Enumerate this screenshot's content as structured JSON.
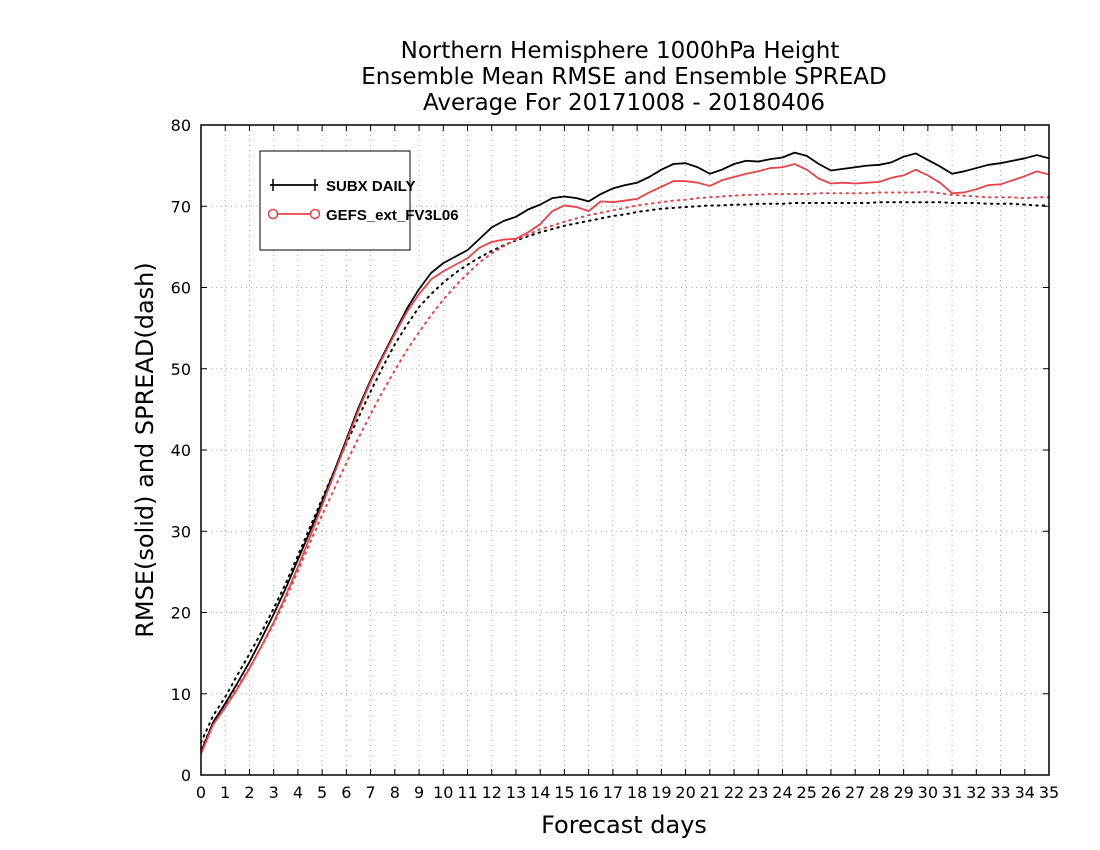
{
  "chart_data": {
    "type": "line",
    "title_lines": [
      "Northern Hemisphere 1000hPa Height",
      "Ensemble Mean RMSE and Ensemble SPREAD",
      "Average For 20171008 - 20180406"
    ],
    "xlabel": "Forecast days",
    "ylabel": "RMSE(solid) and SPREAD(dash)",
    "xlim": [
      0,
      35
    ],
    "ylim": [
      0,
      80
    ],
    "x_ticks": [
      0,
      1,
      2,
      3,
      4,
      5,
      6,
      7,
      8,
      9,
      10,
      11,
      12,
      13,
      14,
      15,
      16,
      17,
      18,
      19,
      20,
      21,
      22,
      23,
      24,
      25,
      26,
      27,
      28,
      29,
      30,
      31,
      32,
      33,
      34,
      35
    ],
    "y_ticks": [
      0,
      10,
      20,
      30,
      40,
      50,
      60,
      70,
      80
    ],
    "x_tick_labels": [
      "0",
      "1",
      "2",
      "3",
      "4",
      "5",
      "6",
      "7",
      "8",
      "9",
      "10",
      "11",
      "12",
      "13",
      "14",
      "15",
      "16",
      "17",
      "18",
      "19",
      "20",
      "21",
      "22",
      "23",
      "24",
      "25",
      "26",
      "27",
      "28",
      "29",
      "30",
      "31",
      "32",
      "33",
      "34",
      "35"
    ],
    "y_tick_labels": [
      "0",
      "10",
      "20",
      "30",
      "40",
      "50",
      "60",
      "70",
      "80"
    ],
    "grid": true,
    "legend_position": "top-left",
    "series": [
      {
        "name": "SUBX DAILY",
        "metric": "RMSE",
        "style": "solid",
        "color": "#000000",
        "marker": "plus",
        "x": [
          0,
          0.5,
          1,
          1.5,
          2,
          2.5,
          3,
          3.5,
          4,
          4.5,
          5,
          5.5,
          6,
          6.5,
          7,
          7.5,
          8,
          8.5,
          9,
          9.5,
          10,
          10.5,
          11,
          11.5,
          12,
          12.5,
          13,
          13.5,
          14,
          14.5,
          15,
          15.5,
          16,
          16.5,
          17,
          17.5,
          18,
          18.5,
          19,
          19.5,
          20,
          20.5,
          21,
          21.5,
          22,
          22.5,
          23,
          23.5,
          24,
          24.5,
          25,
          25.5,
          26,
          26.5,
          27,
          27.5,
          28,
          28.5,
          29,
          29.5,
          30,
          30.5,
          31,
          31.5,
          32,
          32.5,
          33,
          33.5,
          34,
          34.5,
          35
        ],
        "y": [
          2.8,
          6.5,
          8.8,
          11.3,
          13.9,
          16.8,
          19.8,
          23.0,
          26.5,
          30.0,
          33.7,
          37.4,
          41.3,
          45.2,
          48.6,
          51.6,
          54.5,
          57.4,
          59.8,
          61.8,
          63.0,
          63.8,
          64.6,
          66.0,
          67.4,
          68.2,
          68.7,
          69.6,
          70.2,
          71.0,
          71.2,
          71.0,
          70.6,
          71.5,
          72.2,
          72.6,
          72.9,
          73.6,
          74.5,
          75.2,
          75.3,
          74.8,
          74.0,
          74.5,
          75.2,
          75.6,
          75.5,
          75.8,
          76.0,
          76.6,
          76.2,
          75.2,
          74.4,
          74.6,
          74.8,
          75.0,
          75.1,
          75.4,
          76.1,
          76.5,
          75.7,
          74.9,
          74.0,
          74.3,
          74.7,
          75.1,
          75.3,
          75.6,
          75.9,
          76.3,
          75.9
        ]
      },
      {
        "name": "GEFS_ext_FV3L06",
        "metric": "RMSE",
        "style": "solid",
        "color": "#e8434a",
        "marker": "circle",
        "x": [
          0,
          0.5,
          1,
          1.5,
          2,
          2.5,
          3,
          3.5,
          4,
          4.5,
          5,
          5.5,
          6,
          6.5,
          7,
          7.5,
          8,
          8.5,
          9,
          9.5,
          10,
          10.5,
          11,
          11.5,
          12,
          12.5,
          13,
          13.5,
          14,
          14.5,
          15,
          15.5,
          16,
          16.5,
          17,
          17.5,
          18,
          18.5,
          19,
          19.5,
          20,
          20.5,
          21,
          21.5,
          22,
          22.5,
          23,
          23.5,
          24,
          24.5,
          25,
          25.5,
          26,
          26.5,
          27,
          27.5,
          28,
          28.5,
          29,
          29.5,
          30,
          30.5,
          31,
          31.5,
          32,
          32.5,
          33,
          33.5,
          34,
          34.5,
          35
        ],
        "y": [
          2.6,
          6.2,
          8.3,
          10.6,
          13.1,
          15.9,
          18.8,
          22.1,
          25.6,
          29.3,
          33.2,
          37.1,
          41.0,
          44.9,
          48.4,
          51.4,
          54.3,
          57.0,
          59.2,
          61.0,
          62.0,
          62.8,
          63.6,
          64.9,
          65.6,
          65.9,
          66.0,
          66.8,
          67.8,
          69.4,
          70.1,
          69.9,
          69.4,
          70.6,
          70.5,
          70.7,
          70.9,
          71.7,
          72.4,
          73.1,
          73.1,
          72.9,
          72.5,
          73.2,
          73.6,
          74.0,
          74.3,
          74.7,
          74.8,
          75.2,
          74.5,
          73.4,
          72.8,
          72.9,
          72.8,
          72.9,
          73.0,
          73.5,
          73.8,
          74.5,
          73.8,
          72.9,
          71.6,
          71.7,
          72.1,
          72.6,
          72.7,
          73.2,
          73.7,
          74.3,
          73.9
        ]
      },
      {
        "name": "SUBX DAILY",
        "metric": "SPREAD",
        "style": "dotted",
        "color": "#000000",
        "x": [
          0,
          0.5,
          1,
          1.5,
          2,
          2.5,
          3,
          3.5,
          4,
          4.5,
          5,
          5.5,
          6,
          6.5,
          7,
          7.5,
          8,
          8.5,
          9,
          9.5,
          10,
          10.5,
          11,
          11.5,
          12,
          12.5,
          13,
          13.5,
          14,
          14.5,
          15,
          15.5,
          16,
          16.5,
          17,
          17.5,
          18,
          18.5,
          19,
          19.5,
          20,
          20.5,
          21,
          21.5,
          22,
          22.5,
          23,
          23.5,
          24,
          24.5,
          25,
          25.5,
          26,
          26.5,
          27,
          27.5,
          28,
          28.5,
          29,
          29.5,
          30,
          30.5,
          31,
          31.5,
          32,
          32.5,
          33,
          33.5,
          34,
          34.5,
          35
        ],
        "y": [
          4.0,
          7.3,
          9.6,
          12.3,
          14.9,
          17.6,
          20.5,
          23.6,
          27.0,
          30.5,
          34.0,
          37.4,
          40.8,
          44.0,
          47.2,
          50.2,
          53.0,
          55.4,
          57.6,
          59.2,
          60.6,
          61.8,
          62.8,
          63.7,
          64.5,
          65.2,
          65.8,
          66.3,
          66.8,
          67.2,
          67.6,
          67.9,
          68.2,
          68.5,
          68.8,
          69.0,
          69.3,
          69.5,
          69.7,
          69.8,
          69.9,
          70.0,
          70.1,
          70.1,
          70.2,
          70.2,
          70.3,
          70.3,
          70.3,
          70.4,
          70.4,
          70.4,
          70.4,
          70.4,
          70.4,
          70.4,
          70.5,
          70.5,
          70.5,
          70.5,
          70.5,
          70.5,
          70.4,
          70.4,
          70.4,
          70.3,
          70.3,
          70.3,
          70.2,
          70.1,
          70.1
        ]
      },
      {
        "name": "GEFS_ext_FV3L06",
        "metric": "SPREAD",
        "style": "dotted",
        "color": "#e8434a",
        "x": [
          0,
          0.5,
          1,
          1.5,
          2,
          2.5,
          3,
          3.5,
          4,
          4.5,
          5,
          5.5,
          6,
          6.5,
          7,
          7.5,
          8,
          8.5,
          9,
          9.5,
          10,
          10.5,
          11,
          11.5,
          12,
          12.5,
          13,
          13.5,
          14,
          14.5,
          15,
          15.5,
          16,
          16.5,
          17,
          17.5,
          18,
          18.5,
          19,
          19.5,
          20,
          20.5,
          21,
          21.5,
          22,
          22.5,
          23,
          23.5,
          24,
          24.5,
          25,
          25.5,
          26,
          26.5,
          27,
          27.5,
          28,
          28.5,
          29,
          29.5,
          30,
          30.5,
          31,
          31.5,
          32,
          32.5,
          33,
          33.5,
          34,
          34.5,
          35
        ],
        "y": [
          3.3,
          6.3,
          8.5,
          10.8,
          13.2,
          15.8,
          18.6,
          21.7,
          25.1,
          28.6,
          32.0,
          35.2,
          38.4,
          41.5,
          44.4,
          47.2,
          49.8,
          52.3,
          54.5,
          56.6,
          58.5,
          60.2,
          61.7,
          63.1,
          64.2,
          65.1,
          65.9,
          66.5,
          67.2,
          67.6,
          68.1,
          68.5,
          68.9,
          69.2,
          69.5,
          69.8,
          70.1,
          70.3,
          70.5,
          70.7,
          70.8,
          71.0,
          71.1,
          71.2,
          71.3,
          71.4,
          71.4,
          71.5,
          71.5,
          71.5,
          71.5,
          71.6,
          71.6,
          71.6,
          71.6,
          71.6,
          71.7,
          71.7,
          71.7,
          71.7,
          71.8,
          71.6,
          71.4,
          71.3,
          71.2,
          71.1,
          71.1,
          71.1,
          71.0,
          71.1,
          71.1
        ]
      }
    ],
    "legend": [
      {
        "label": "SUBX DAILY",
        "color": "#000000",
        "marker": "plus"
      },
      {
        "label": "GEFS_ext_FV3L06",
        "color": "#e8434a",
        "marker": "circle"
      }
    ]
  }
}
